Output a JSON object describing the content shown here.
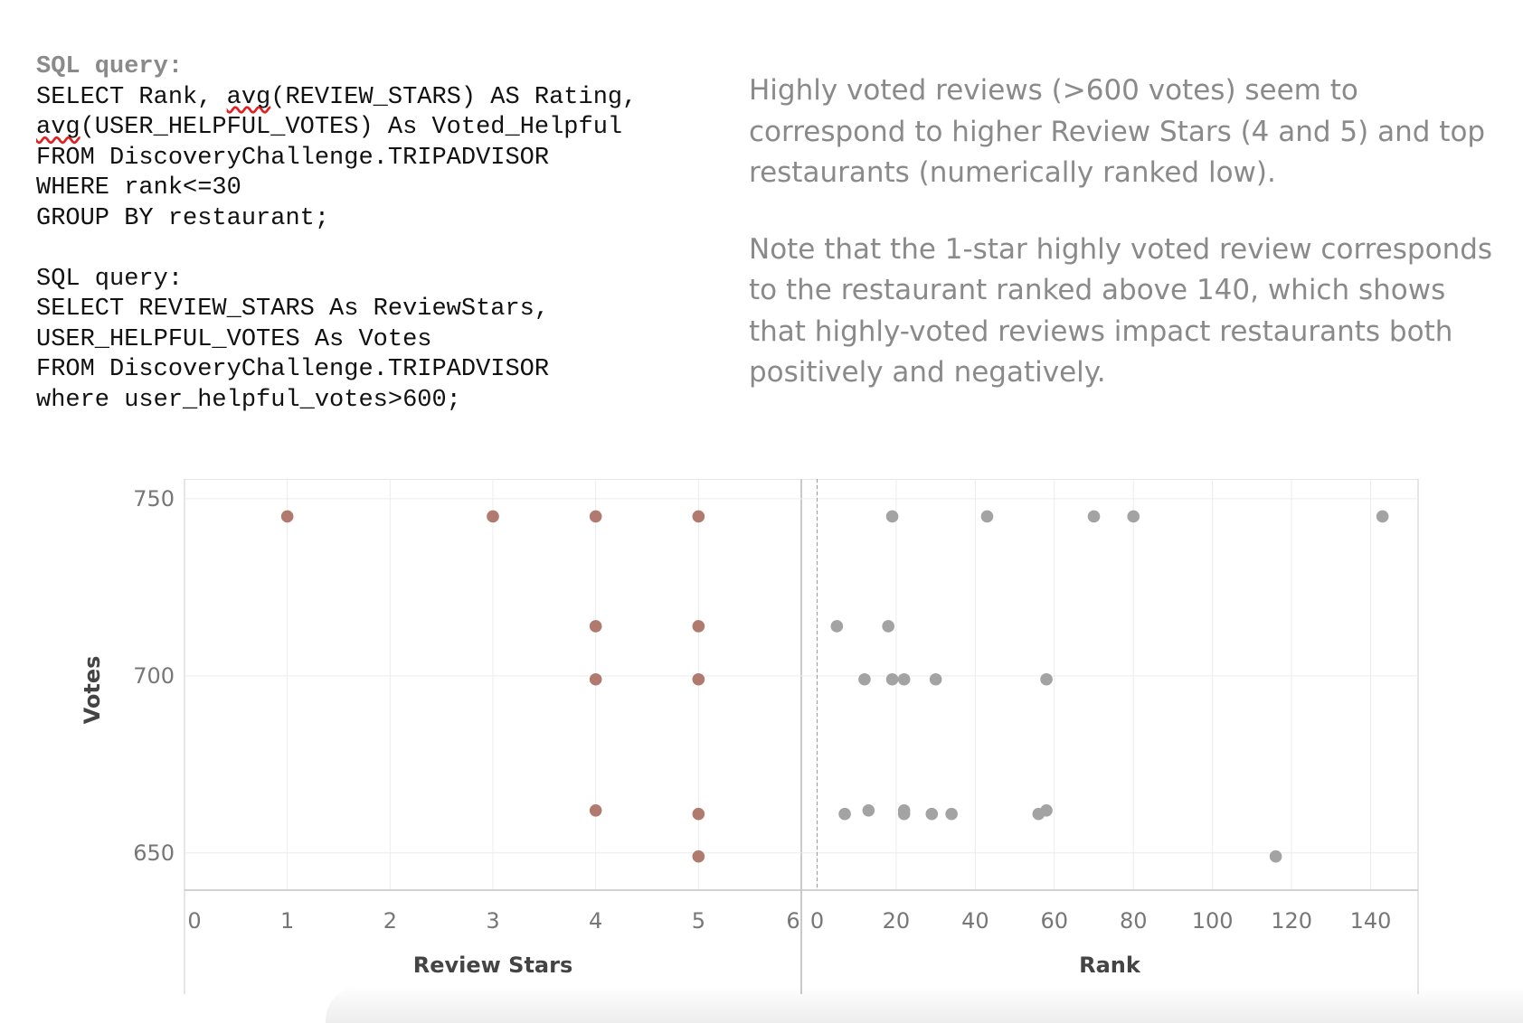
{
  "sql_blocks": [
    {
      "label": "SQL query:",
      "lines": [
        {
          "parts": [
            {
              "t": "SELECT Rank, "
            },
            {
              "t": "avg",
              "sq": true
            },
            {
              "t": "(REVIEW_STARS) AS Rating,"
            }
          ]
        },
        {
          "parts": [
            {
              "t": "avg",
              "sq": true
            },
            {
              "t": "(USER_HELPFUL_VOTES) As Voted_Helpful"
            }
          ]
        },
        {
          "parts": [
            {
              "t": "FROM DiscoveryChallenge.TRIPADVISOR"
            }
          ]
        },
        {
          "parts": [
            {
              "t": "WHERE rank<=30"
            }
          ]
        },
        {
          "parts": [
            {
              "t": "GROUP BY restaurant;"
            }
          ]
        }
      ]
    },
    {
      "label": "SQL query:",
      "lines": [
        {
          "parts": [
            {
              "t": "SELECT REVIEW_STARS As ReviewStars,"
            }
          ]
        },
        {
          "parts": [
            {
              "t": "USER_HELPFUL_VOTES As Votes"
            }
          ]
        },
        {
          "parts": [
            {
              "t": "FROM DiscoveryChallenge.TRIPADVISOR"
            }
          ]
        },
        {
          "parts": [
            {
              "t": "where user_helpful_votes>600;"
            }
          ]
        }
      ]
    }
  ],
  "notes": {
    "p1": "Highly voted reviews (>600 votes) seem to correspond to higher Review Stars (4 and 5) and top restaurants (numerically ranked low).",
    "p2": "Note that the 1-star highly voted review corresponds to the restaurant ranked above 140, which shows that highly-voted reviews impact restaurants both positively and negatively."
  },
  "chart_data": [
    {
      "type": "scatter",
      "title": "",
      "xlabel": "Review Stars",
      "ylabel": "Votes",
      "xlim": [
        0,
        6
      ],
      "ylim": [
        640,
        752
      ],
      "x_ticks": [
        0,
        1,
        2,
        3,
        4,
        5,
        6
      ],
      "y_ticks": [
        650,
        700,
        750
      ],
      "grid": true,
      "color": "#b07a6e",
      "points": [
        {
          "x": 1,
          "y": 745
        },
        {
          "x": 3,
          "y": 745
        },
        {
          "x": 4,
          "y": 745
        },
        {
          "x": 5,
          "y": 745
        },
        {
          "x": 4,
          "y": 714
        },
        {
          "x": 5,
          "y": 714
        },
        {
          "x": 4,
          "y": 699
        },
        {
          "x": 5,
          "y": 699
        },
        {
          "x": 4,
          "y": 662
        },
        {
          "x": 5,
          "y": 661
        },
        {
          "x": 5,
          "y": 649
        }
      ]
    },
    {
      "type": "scatter",
      "title": "",
      "xlabel": "Rank",
      "ylabel": "Votes",
      "xlim": [
        -4,
        152
      ],
      "ylim": [
        640,
        752
      ],
      "x_ticks": [
        0,
        20,
        40,
        60,
        80,
        100,
        120,
        140
      ],
      "y_ticks": [
        650,
        700,
        750
      ],
      "grid": true,
      "ref_line_x": 0,
      "color": "#a3a3a3",
      "points": [
        {
          "x": 19,
          "y": 745
        },
        {
          "x": 43,
          "y": 745
        },
        {
          "x": 70,
          "y": 745
        },
        {
          "x": 80,
          "y": 745
        },
        {
          "x": 143,
          "y": 745
        },
        {
          "x": 5,
          "y": 714
        },
        {
          "x": 18,
          "y": 714
        },
        {
          "x": 12,
          "y": 699
        },
        {
          "x": 19,
          "y": 699
        },
        {
          "x": 22,
          "y": 699
        },
        {
          "x": 30,
          "y": 699
        },
        {
          "x": 58,
          "y": 699
        },
        {
          "x": 7,
          "y": 661
        },
        {
          "x": 13,
          "y": 662
        },
        {
          "x": 22,
          "y": 662
        },
        {
          "x": 22,
          "y": 661
        },
        {
          "x": 29,
          "y": 661
        },
        {
          "x": 34,
          "y": 661
        },
        {
          "x": 56,
          "y": 661
        },
        {
          "x": 58,
          "y": 662
        },
        {
          "x": 116,
          "y": 649
        }
      ]
    }
  ]
}
